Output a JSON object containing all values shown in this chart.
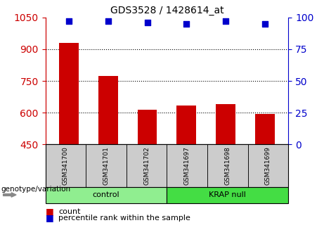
{
  "title": "GDS3528 / 1428614_at",
  "categories": [
    "GSM341700",
    "GSM341701",
    "GSM341702",
    "GSM341697",
    "GSM341698",
    "GSM341699"
  ],
  "bar_values": [
    930,
    775,
    615,
    635,
    640,
    595
  ],
  "percentile_values": [
    97,
    97,
    96,
    95,
    97,
    95
  ],
  "bar_color": "#cc0000",
  "dot_color": "#0000cc",
  "ylim_left": [
    450,
    1050
  ],
  "ylim_right": [
    0,
    100
  ],
  "yticks_left": [
    450,
    600,
    750,
    900,
    1050
  ],
  "yticks_right": [
    0,
    25,
    50,
    75,
    100
  ],
  "grid_lines": [
    600,
    750,
    900
  ],
  "groups": [
    {
      "label": "control",
      "indices": [
        0,
        1,
        2
      ],
      "color": "#90ee90"
    },
    {
      "label": "KRAP null",
      "indices": [
        3,
        4,
        5
      ],
      "color": "#44dd44"
    }
  ],
  "group_label": "genotype/variation",
  "legend_count_label": "count",
  "legend_percentile_label": "percentile rank within the sample",
  "background_color": "#ffffff",
  "left_tick_color": "#cc0000",
  "right_tick_color": "#0000cc",
  "bar_width": 0.5,
  "figsize": [
    4.61,
    3.54
  ],
  "dpi": 100
}
